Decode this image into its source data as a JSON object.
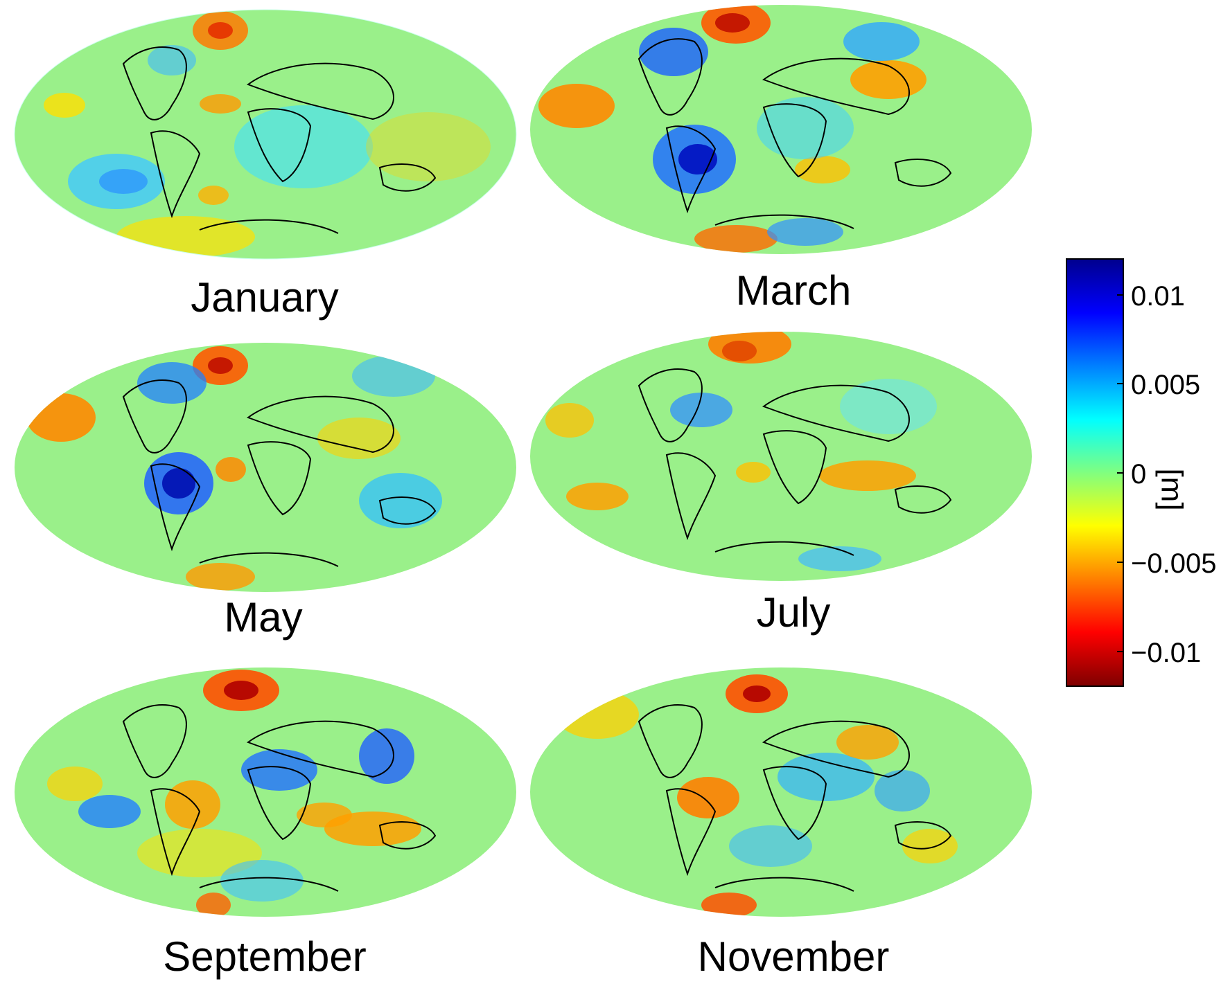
{
  "panels": [
    {
      "id": "jan",
      "title": "January"
    },
    {
      "id": "mar",
      "title": "March"
    },
    {
      "id": "may",
      "title": "May"
    },
    {
      "id": "jul",
      "title": "July"
    },
    {
      "id": "sep",
      "title": "September"
    },
    {
      "id": "nov",
      "title": "November"
    }
  ],
  "colorbar": {
    "ticks": [
      "0.01",
      "0.005",
      "0",
      "−0.005",
      "−0.01"
    ],
    "unit": "[m]",
    "colormap": [
      "#800000",
      "#ff0000",
      "#ff8000",
      "#ffff00",
      "#80ff80",
      "#00ffff",
      "#0080ff",
      "#0000ff",
      "#00008f"
    ]
  },
  "map_style": {
    "coastline_color": "#000000",
    "background_field": "#7fe08a"
  }
}
